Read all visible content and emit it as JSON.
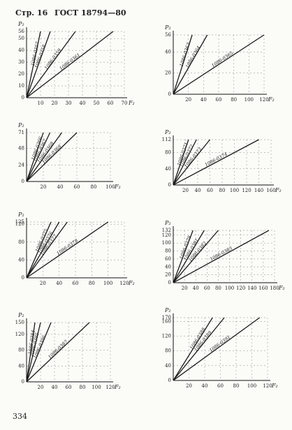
{
  "header": {
    "page": "Стр. 16",
    "standard": "ГОСТ 18794—80"
  },
  "footer": {
    "number": "334"
  },
  "chart_data": [
    {
      "type": "line",
      "x_label": "F₂",
      "y_label": "P₂",
      "color": "#1a1a1a",
      "grid": true,
      "xlim": [
        0,
        70
      ],
      "ylim": [
        0,
        56
      ],
      "xticks": [
        10,
        20,
        30,
        40,
        50,
        60,
        70
      ],
      "yticks": [
        0,
        10,
        20,
        30,
        40,
        50,
        56
      ],
      "series": [
        {
          "name": "1086-0357",
          "x": [
            0,
            10
          ],
          "values": [
            0,
            56
          ]
        },
        {
          "name": "1086-0358",
          "x": [
            0,
            17
          ],
          "values": [
            0,
            56
          ]
        },
        {
          "name": "1086-0359",
          "x": [
            0,
            35
          ],
          "values": [
            0,
            56
          ]
        },
        {
          "name": "1086-0361",
          "x": [
            0,
            62
          ],
          "values": [
            0,
            56
          ]
        }
      ]
    },
    {
      "type": "line",
      "x_label": "F₂",
      "y_label": "P₂",
      "color": "#1a1a1a",
      "grid": true,
      "xlim": [
        0,
        120
      ],
      "ylim": [
        0,
        56
      ],
      "xticks": [
        20,
        40,
        60,
        80,
        100,
        120
      ],
      "yticks": [
        0,
        20,
        40,
        56
      ],
      "series": [
        {
          "name": "1086-0363",
          "x": [
            0,
            25
          ],
          "values": [
            0,
            56
          ]
        },
        {
          "name": "1086-0364",
          "x": [
            0,
            45
          ],
          "values": [
            0,
            56
          ]
        },
        {
          "name": "1086-0365",
          "x": [
            0,
            120
          ],
          "values": [
            0,
            56
          ]
        }
      ]
    },
    {
      "type": "line",
      "x_label": "F₂",
      "y_label": "P₂",
      "color": "#1a1a1a",
      "grid": true,
      "xlim": [
        0,
        100
      ],
      "ylim": [
        0,
        71
      ],
      "xticks": [
        20,
        40,
        60,
        80,
        100
      ],
      "yticks": [
        0,
        24,
        48,
        71
      ],
      "series": [
        {
          "name": "1086-0366",
          "x": [
            0,
            20
          ],
          "values": [
            0,
            71
          ]
        },
        {
          "name": "1086-0367",
          "x": [
            0,
            28
          ],
          "values": [
            0,
            71
          ]
        },
        {
          "name": "1086-0368",
          "x": [
            0,
            42
          ],
          "values": [
            0,
            71
          ]
        },
        {
          "name": "1086-0369",
          "x": [
            0,
            60
          ],
          "values": [
            0,
            71
          ]
        }
      ]
    },
    {
      "type": "line",
      "x_label": "F₂",
      "y_label": "P₂",
      "color": "#1a1a1a",
      "grid": true,
      "xlim": [
        0,
        160
      ],
      "ylim": [
        0,
        112
      ],
      "xticks": [
        20,
        40,
        60,
        80,
        100,
        120,
        140,
        160
      ],
      "yticks": [
        0,
        40,
        80,
        112
      ],
      "series": [
        {
          "name": "1086-0371",
          "x": [
            0,
            25
          ],
          "values": [
            0,
            112
          ]
        },
        {
          "name": "1086-0372",
          "x": [
            0,
            38
          ],
          "values": [
            0,
            112
          ]
        },
        {
          "name": "1086-0373",
          "x": [
            0,
            60
          ],
          "values": [
            0,
            112
          ]
        },
        {
          "name": "1086-0374",
          "x": [
            0,
            140
          ],
          "values": [
            0,
            112
          ]
        }
      ]
    },
    {
      "type": "line",
      "x_label": "F₂",
      "y_label": "P₂",
      "color": "#1a1a1a",
      "grid": true,
      "xlim": [
        0,
        120
      ],
      "ylim": [
        0,
        125
      ],
      "xticks": [
        20,
        40,
        60,
        80,
        100,
        120
      ],
      "yticks": [
        0,
        40,
        80,
        120,
        125
      ],
      "series": [
        {
          "name": "1086-0375",
          "x": [
            0,
            30
          ],
          "values": [
            0,
            125
          ]
        },
        {
          "name": "1086-0376",
          "x": [
            0,
            40
          ],
          "values": [
            0,
            125
          ]
        },
        {
          "name": "1086-0377",
          "x": [
            0,
            50
          ],
          "values": [
            0,
            125
          ]
        },
        {
          "name": "1086-0378",
          "x": [
            0,
            100
          ],
          "values": [
            0,
            125
          ]
        }
      ]
    },
    {
      "type": "line",
      "x_label": "F₂",
      "y_label": "P₂",
      "color": "#1a1a1a",
      "grid": true,
      "xlim": [
        0,
        180
      ],
      "ylim": [
        0,
        132
      ],
      "xticks": [
        20,
        40,
        60,
        80,
        100,
        120,
        140,
        160,
        180
      ],
      "yticks": [
        0,
        20,
        40,
        60,
        80,
        100,
        120,
        132
      ],
      "series": [
        {
          "name": "1086-0379",
          "x": [
            0,
            35
          ],
          "values": [
            0,
            132
          ]
        },
        {
          "name": "1086-0381",
          "x": [
            0,
            55
          ],
          "values": [
            0,
            132
          ]
        },
        {
          "name": "1086-0382",
          "x": [
            0,
            80
          ],
          "values": [
            0,
            132
          ]
        },
        {
          "name": "1086-0383",
          "x": [
            0,
            170
          ],
          "values": [
            0,
            132
          ]
        }
      ]
    },
    {
      "type": "line",
      "x_label": "F₂",
      "y_label": "P₂",
      "color": "#1a1a1a",
      "grid": true,
      "xlim": [
        0,
        120
      ],
      "ylim": [
        0,
        150
      ],
      "xticks": [
        20,
        40,
        60,
        80,
        100,
        120
      ],
      "yticks": [
        0,
        40,
        80,
        120,
        150
      ],
      "series": [
        {
          "name": "1086-0384",
          "x": [
            0,
            12
          ],
          "values": [
            0,
            150
          ]
        },
        {
          "name": "1086-0385",
          "x": [
            0,
            20
          ],
          "values": [
            0,
            150
          ]
        },
        {
          "name": "1086-0386",
          "x": [
            0,
            35
          ],
          "values": [
            0,
            150
          ]
        },
        {
          "name": "1086-0387",
          "x": [
            0,
            90
          ],
          "values": [
            0,
            150
          ]
        }
      ]
    },
    {
      "type": "line",
      "x_label": "F₂",
      "y_label": "P₂",
      "color": "#1a1a1a",
      "grid": true,
      "xlim": [
        0,
        120
      ],
      "ylim": [
        0,
        170
      ],
      "xticks": [
        20,
        40,
        60,
        80,
        100,
        120
      ],
      "yticks": [
        0,
        40,
        80,
        120,
        160,
        170
      ],
      "series": [
        {
          "name": "1086-0388",
          "x": [
            0,
            50
          ],
          "values": [
            0,
            170
          ]
        },
        {
          "name": "1086-0389",
          "x": [
            0,
            65
          ],
          "values": [
            0,
            170
          ]
        },
        {
          "name": "1086-0391",
          "x": [
            0,
            110
          ],
          "values": [
            0,
            170
          ]
        }
      ]
    }
  ]
}
